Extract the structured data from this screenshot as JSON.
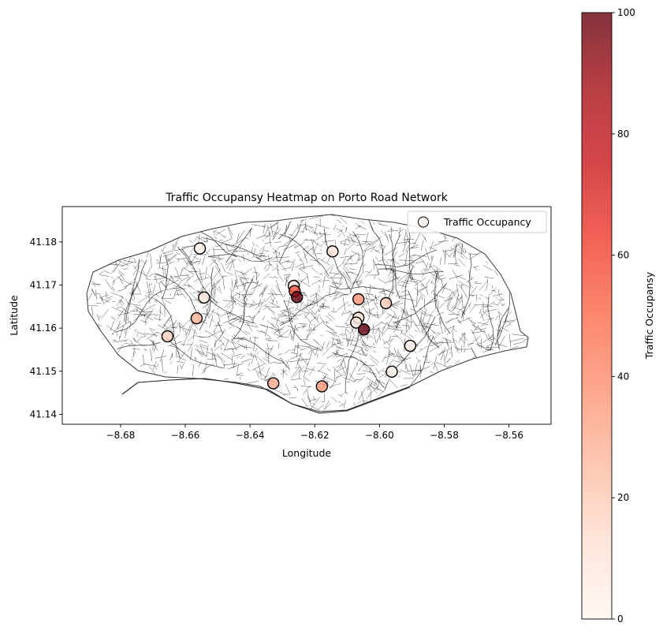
{
  "chart_data": {
    "type": "scatter",
    "title": "Traffic Occupansy Heatmap on Porto Road Network",
    "xlabel": "Longitude",
    "ylabel": "Latitude",
    "xlim": [
      -8.698,
      -8.547
    ],
    "ylim": [
      41.1377,
      41.1882
    ],
    "x_ticks": [
      -8.68,
      -8.66,
      -8.64,
      -8.62,
      -8.6,
      -8.58,
      -8.56
    ],
    "y_ticks": [
      41.14,
      41.15,
      41.16,
      41.17,
      41.18
    ],
    "x_tick_labels": [
      "−8.68",
      "−8.66",
      "−8.64",
      "−8.62",
      "−8.60",
      "−8.58",
      "−8.56"
    ],
    "y_tick_labels": [
      "41.14",
      "41.15",
      "41.16",
      "41.17",
      "41.18"
    ],
    "grid": false,
    "legend": {
      "position": "upper-right",
      "entries": [
        "Traffic Occupancy"
      ]
    },
    "colorbar": {
      "label": "Traffic Occupansy",
      "range": [
        0,
        100
      ],
      "ticks": [
        0,
        20,
        40,
        60,
        80,
        100
      ],
      "colormap": "Reds",
      "alpha": 0.8
    },
    "series": [
      {
        "name": "Traffic Occupancy",
        "points": [
          {
            "x": -8.6555,
            "y": 41.1785,
            "v": 3
          },
          {
            "x": -8.6145,
            "y": 41.1778,
            "v": 12
          },
          {
            "x": -8.6265,
            "y": 41.1698,
            "v": 10
          },
          {
            "x": -8.6262,
            "y": 41.1686,
            "v": 55
          },
          {
            "x": -8.6255,
            "y": 41.1672,
            "v": 100
          },
          {
            "x": -8.6542,
            "y": 41.1671,
            "v": 8
          },
          {
            "x": -8.6065,
            "y": 41.1667,
            "v": 38
          },
          {
            "x": -8.598,
            "y": 41.1658,
            "v": 20
          },
          {
            "x": -8.6565,
            "y": 41.1623,
            "v": 28
          },
          {
            "x": -8.6065,
            "y": 41.1624,
            "v": 12
          },
          {
            "x": -8.6072,
            "y": 41.1613,
            "v": 6
          },
          {
            "x": -8.6048,
            "y": 41.1597,
            "v": 100
          },
          {
            "x": -8.6655,
            "y": 41.1581,
            "v": 18
          },
          {
            "x": -8.5905,
            "y": 41.1559,
            "v": 4
          },
          {
            "x": -8.5962,
            "y": 41.1499,
            "v": 2
          },
          {
            "x": -8.6328,
            "y": 41.1472,
            "v": 30
          },
          {
            "x": -8.6178,
            "y": 41.1465,
            "v": 35
          }
        ]
      }
    ]
  }
}
